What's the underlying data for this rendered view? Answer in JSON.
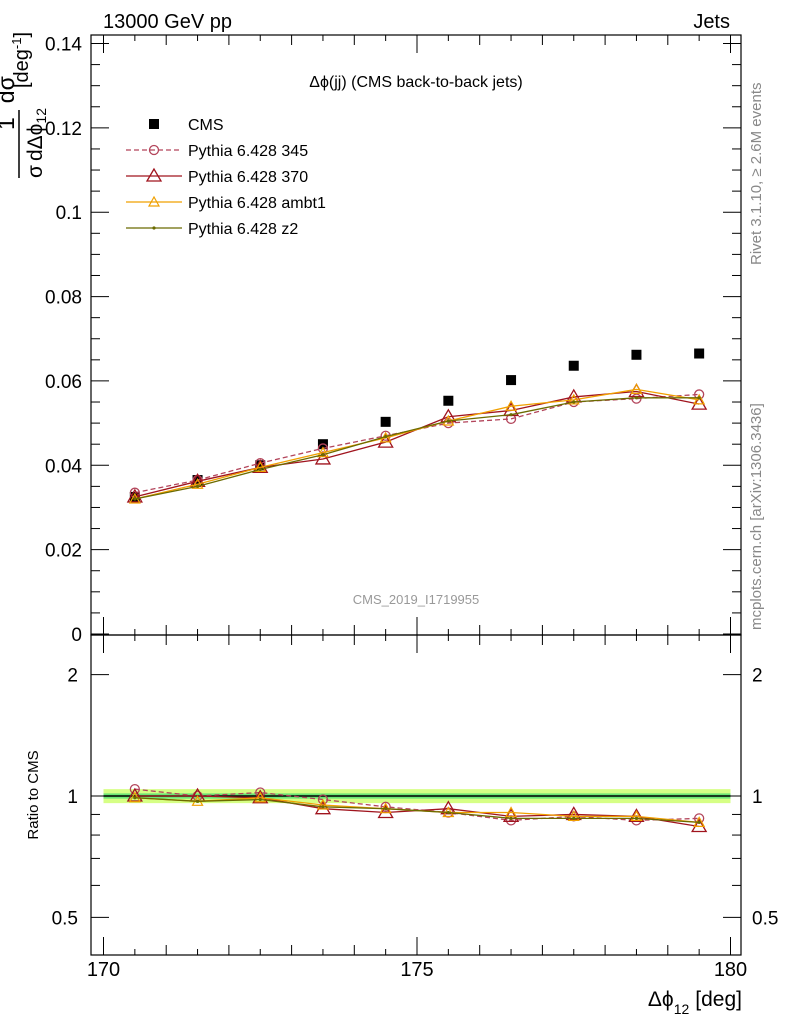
{
  "header": {
    "left": "13000 GeV pp",
    "right": "Jets"
  },
  "side_text": {
    "rivet": "Rivet 3.1.10, ≥ 2.6M events",
    "mcplots": "mcplots.cern.ch [arXiv:1306.3436]"
  },
  "analysis_id": "CMS_2019_I1719955",
  "plot_title": "Δϕ(jj) (CMS back-to-back jets)",
  "colors": {
    "cms": "#000000",
    "p345": "#b3455b",
    "p370": "#a0141e",
    "ambt1": "#f0a000",
    "z2": "#6b6b00",
    "band": "#ccff66",
    "band_inner": "#00cc66"
  },
  "chart_data": [
    {
      "type": "scatter",
      "panel": "main",
      "title": "Δϕ(jj) (CMS back-to-back jets)",
      "ylabel": "1/σ dσ/dΔϕ₁₂ [deg⁻¹]",
      "xlabel": "Δϕ₁₂ [deg]",
      "xlim": [
        170,
        180
      ],
      "ylim": [
        0,
        0.142
      ],
      "yticks": [
        "0",
        "0.02",
        "0.04",
        "0.06",
        "0.08",
        "0.1",
        "0.12",
        "0.14"
      ],
      "x": [
        170.5,
        171.5,
        172.5,
        173.5,
        174.5,
        175.5,
        176.5,
        177.5,
        178.5,
        179.5
      ],
      "series": [
        {
          "name": "CMS",
          "key": "cms",
          "values": [
            0.0325,
            0.0365,
            0.04,
            0.045,
            0.0503,
            0.0553,
            0.0602,
            0.0636,
            0.0662,
            0.0665
          ]
        },
        {
          "name": "Pythia 6.428 345",
          "key": "p345",
          "values": [
            0.0335,
            0.0365,
            0.0405,
            0.044,
            0.047,
            0.05,
            0.051,
            0.055,
            0.0558,
            0.0568
          ]
        },
        {
          "name": "Pythia 6.428 370",
          "key": "p370",
          "values": [
            0.0325,
            0.0362,
            0.0395,
            0.0415,
            0.0455,
            0.0515,
            0.053,
            0.0562,
            0.0575,
            0.0545
          ]
        },
        {
          "name": "Pythia 6.428 ambt1",
          "key": "ambt1",
          "values": [
            0.032,
            0.0355,
            0.0395,
            0.043,
            0.0465,
            0.0505,
            0.054,
            0.0555,
            0.058,
            0.0555
          ]
        },
        {
          "name": "Pythia 6.428 z2",
          "key": "z2",
          "values": [
            0.032,
            0.035,
            0.039,
            0.0425,
            0.0468,
            0.0505,
            0.052,
            0.055,
            0.056,
            0.056
          ]
        }
      ]
    },
    {
      "type": "line",
      "panel": "ratio",
      "ylabel": "Ratio to CMS",
      "xlim": [
        170,
        180
      ],
      "ylim": [
        0.4,
        2.3
      ],
      "yscale": "log",
      "yticks": [
        "0.5",
        "1",
        "2"
      ],
      "x": [
        170.5,
        171.5,
        172.5,
        173.5,
        174.5,
        175.5,
        176.5,
        177.5,
        178.5,
        179.5
      ],
      "series": [
        {
          "name": "Pythia 6.428 345",
          "key": "p345",
          "values": [
            1.04,
            1.0,
            1.02,
            0.98,
            0.94,
            0.91,
            0.87,
            0.89,
            0.87,
            0.88
          ]
        },
        {
          "name": "Pythia 6.428 370",
          "key": "p370",
          "values": [
            1.0,
            1.0,
            0.99,
            0.93,
            0.91,
            0.93,
            0.89,
            0.9,
            0.89,
            0.84
          ]
        },
        {
          "name": "Pythia 6.428 ambt1",
          "key": "ambt1",
          "values": [
            0.99,
            0.97,
            0.99,
            0.95,
            0.93,
            0.91,
            0.91,
            0.89,
            0.89,
            0.86
          ]
        },
        {
          "name": "Pythia 6.428 z2",
          "key": "z2",
          "values": [
            0.99,
            0.97,
            0.98,
            0.94,
            0.93,
            0.91,
            0.88,
            0.88,
            0.88,
            0.86
          ]
        }
      ]
    }
  ],
  "xticks": [
    "170",
    "175",
    "180"
  ]
}
